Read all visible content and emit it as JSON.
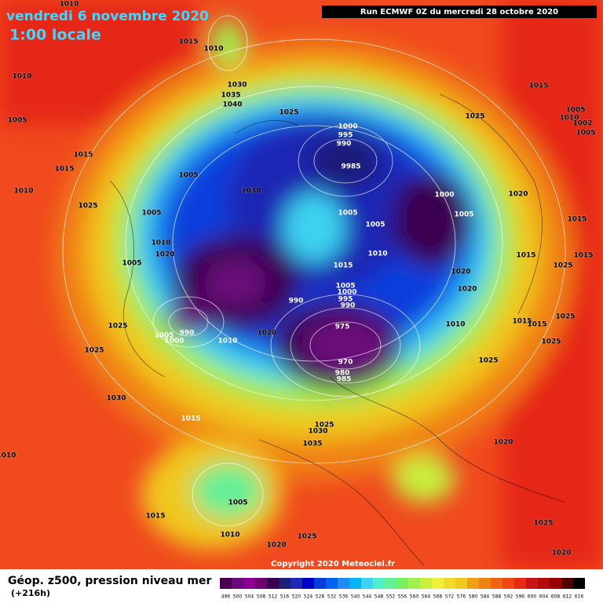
{
  "header": {
    "date": "vendredi 6 novembre 2020",
    "time": "1:00 locale",
    "run": "Run ECMWF 0Z du mercredi 28 octobre 2020"
  },
  "footer": {
    "title": "Géop. z500, pression niveau mer",
    "lead": "(+216h)",
    "copyright": "Copyright 2020 Meteociel.fr"
  },
  "isobar_labels": [
    1010,
    1015,
    1010,
    1010,
    1030,
    1035,
    1040,
    1005,
    1025,
    1000,
    995,
    990,
    9985,
    1015,
    1015,
    1005,
    1010,
    1030,
    1025,
    1005,
    1005,
    1005,
    1010,
    1020,
    1005,
    1015,
    1010,
    1000,
    1005,
    1020,
    1015,
    1015,
    1025,
    1020,
    1020,
    1005,
    1000,
    995,
    990,
    990,
    1025,
    1015,
    1005,
    1010,
    1002,
    1005,
    1015,
    1025,
    1015,
    1015,
    1025,
    1010,
    975,
    1025,
    1025,
    990,
    1005,
    1000,
    1010,
    1020,
    970,
    980,
    985,
    1025,
    1030,
    1015,
    1025,
    1030,
    1035,
    1020,
    1010,
    1005,
    1015,
    1025,
    1010,
    1025,
    1020,
    1020
  ],
  "scale": {
    "labels": [
      496,
      500,
      504,
      508,
      512,
      516,
      520,
      524,
      528,
      532,
      536,
      540,
      544,
      548,
      552,
      556,
      560,
      564,
      568,
      572,
      576,
      580,
      584,
      588,
      592,
      596,
      600,
      604,
      608,
      612,
      616
    ],
    "colors": [
      "#4a0050",
      "#6a0a7a",
      "#8a0090",
      "#700070",
      "#3a0050",
      "#1e1e78",
      "#1e28b4",
      "#0000c8",
      "#0a3cdc",
      "#0064f0",
      "#1e8cf0",
      "#00b4f0",
      "#3cd2f0",
      "#50f0c8",
      "#64f096",
      "#78f064",
      "#a0f050",
      "#c8f03c",
      "#f0f03c",
      "#f0dc28",
      "#f0c81e",
      "#f0a014",
      "#f08214",
      "#f06414",
      "#f04614",
      "#e62814",
      "#c81414",
      "#b40a0a",
      "#960000",
      "#500000",
      "#000000"
    ]
  }
}
